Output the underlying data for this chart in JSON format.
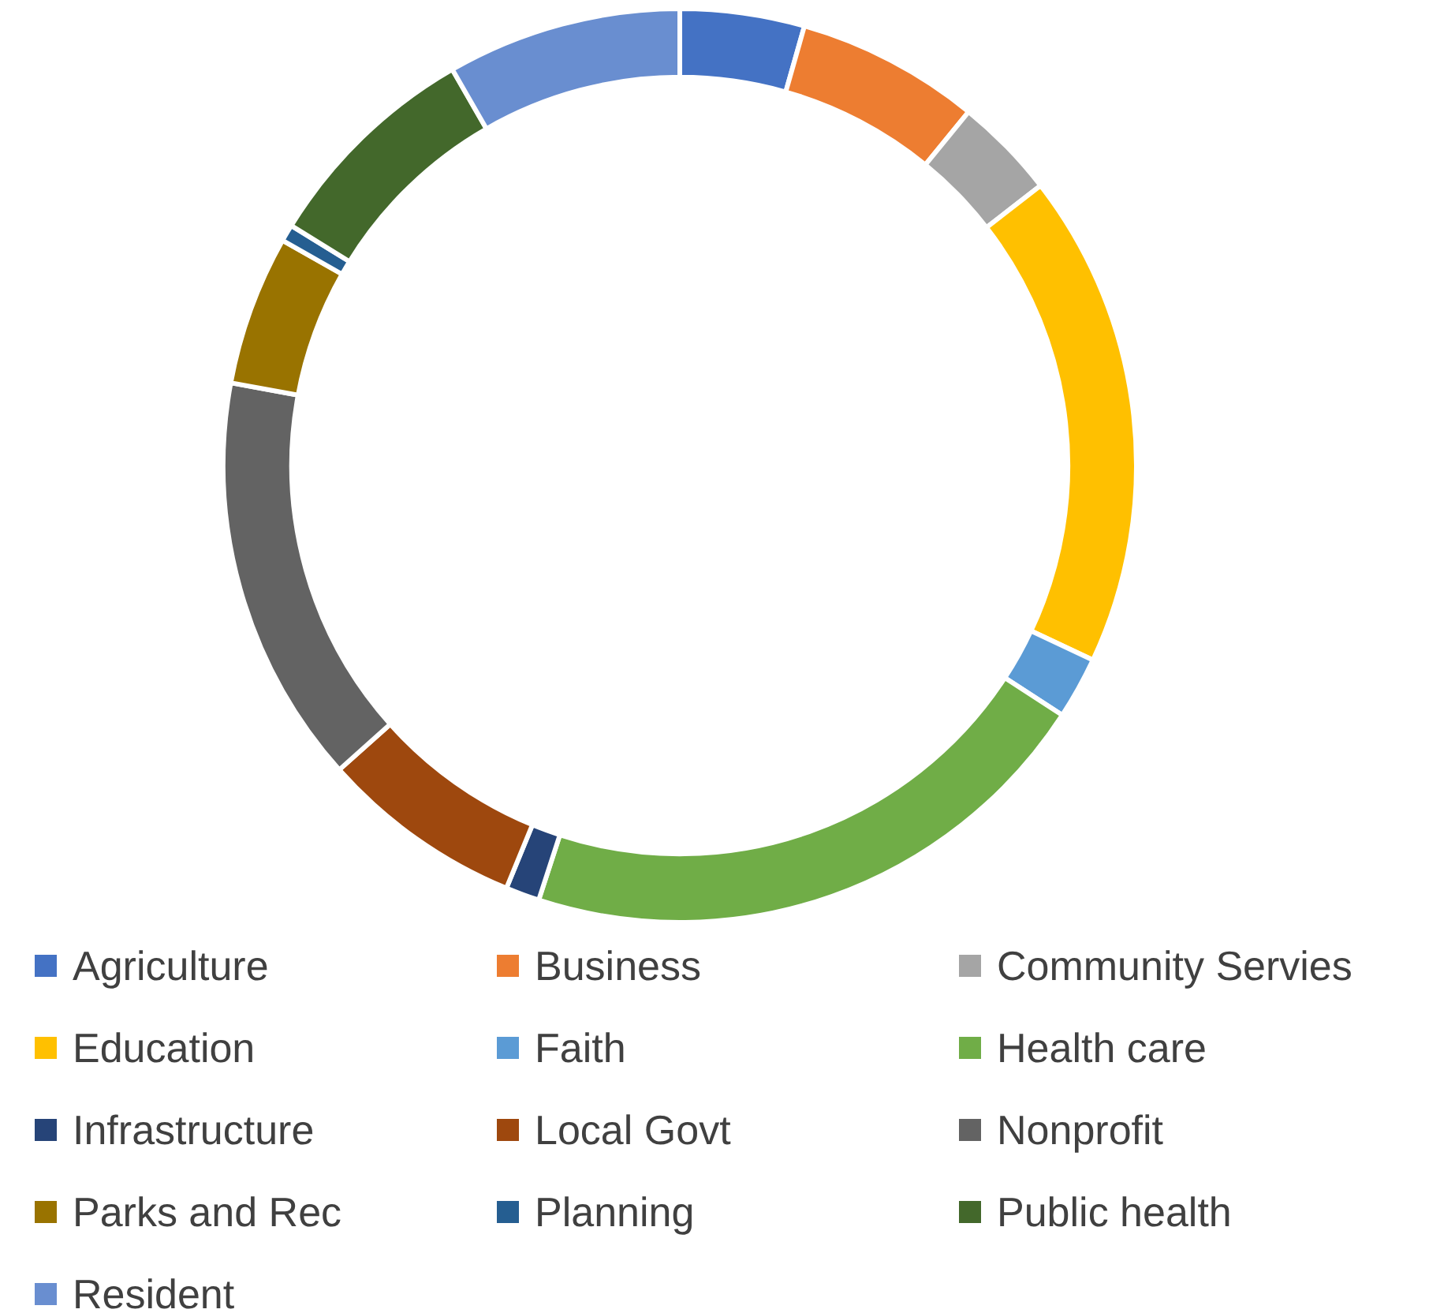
{
  "chart_data": {
    "type": "donut",
    "categories": [
      "Agriculture",
      "Business",
      "Community Servies",
      "Education",
      "Faith",
      "Health care",
      "Infrastructure",
      "Local Govt",
      "Nonprofit",
      "Parks and Rec",
      "Planning",
      "Public health",
      "Resident"
    ],
    "values": [
      4.4,
      6.5,
      3.6,
      17.5,
      2.2,
      20.8,
      1.2,
      7.2,
      14.5,
      5.3,
      0.6,
      7.9,
      8.3
    ],
    "colors": [
      "#4472c4",
      "#ed7d31",
      "#a5a5a5",
      "#ffc000",
      "#5b9bd5",
      "#70ad47",
      "#264478",
      "#9e480e",
      "#636363",
      "#997300",
      "#255e91",
      "#43682b",
      "#698ed0"
    ],
    "legend": "bottom"
  }
}
